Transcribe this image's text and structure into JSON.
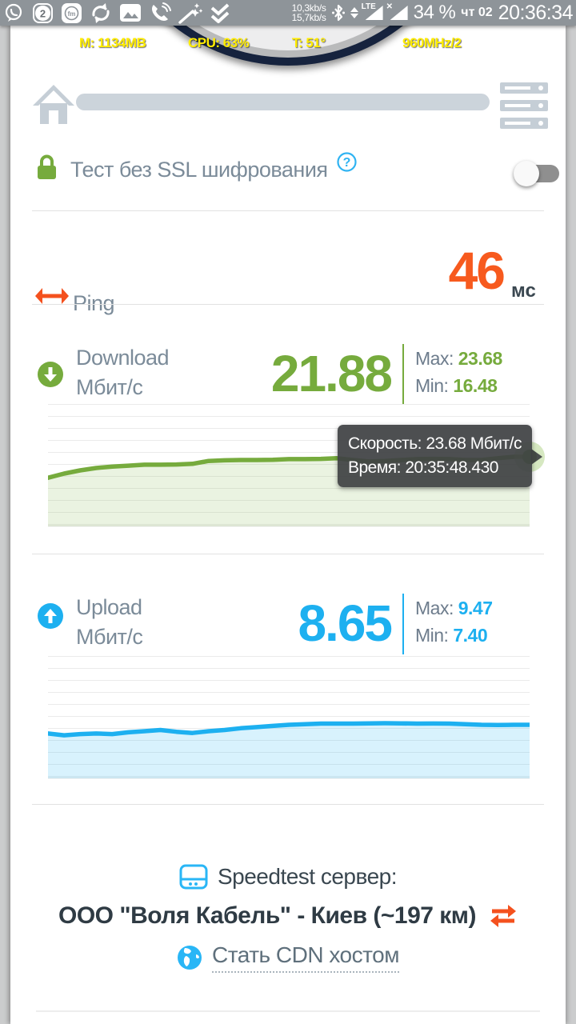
{
  "status_bar": {
    "net_speed_up": "10,3kb/s",
    "net_speed_down": "15,7kb/s",
    "lte_label": "LTE",
    "no_sim_mark": "✕",
    "battery": "34 %",
    "date": "чт 02",
    "time": "20:36:34",
    "app_icons": [
      "viber-icon",
      "notification-count-2-icon",
      "fm-radio-icon",
      "sync-icon",
      "gallery-icon",
      "call-icon",
      "magic-wand-icon",
      "double-check-icon"
    ],
    "badge_count": "2",
    "fm_label": "fm"
  },
  "device_stats": {
    "memory": "M: 1134MB",
    "cpu": "CPU: 63%",
    "temperature": "T: 51°",
    "frequency": "960MHz/2"
  },
  "toolbar": {
    "progress_percent": 0
  },
  "ssl": {
    "label": "Тест без SSL шифрования",
    "help_mark": "?",
    "toggle_on": false
  },
  "ping": {
    "label": "Ping",
    "value": "46",
    "unit": "мс"
  },
  "download": {
    "label": "Download",
    "unit": "Мбит/с",
    "value": "21.88",
    "max_label": "Max:",
    "max": "23.68",
    "min_label": "Min:",
    "min": "16.48"
  },
  "upload": {
    "label": "Upload",
    "unit": "Мбит/с",
    "value": "8.65",
    "max_label": "Max:",
    "max": "9.47",
    "min_label": "Min:",
    "min": "7.40"
  },
  "tooltip": {
    "speed": "Скорость: 23.68 Мбит/с",
    "time": "Время: 20:35:48.430"
  },
  "server": {
    "title": "Speedtest сервер:",
    "name": "ООО \"Воля Кабель\" - Киев (~197 км)"
  },
  "cdn": {
    "label": "Стать CDN хостом"
  },
  "colors": {
    "accent_green": "#76ab3d",
    "accent_blue": "#1db0f0",
    "accent_orange": "#f4511e",
    "label_gray": "#7b8b99",
    "dark_text": "#3a4750",
    "status_bar_bg": "#8e9499",
    "gauge_navy": "#16233e",
    "stats_yellow": "#ffec00"
  },
  "chart_data": [
    {
      "type": "area",
      "name": "download-speed",
      "title": "",
      "xlabel": "",
      "ylabel": "Мбит/с",
      "x_axis": "time (unlabeled ticks)",
      "ylim": [
        0,
        41.5
      ],
      "grid": true,
      "line_color": "#76ab3d",
      "fill_color": "rgba(124,179,66,0.16)",
      "end_marker": true,
      "values": [
        16.5,
        17.9,
        19.0,
        19.8,
        20.3,
        20.6,
        20.9,
        20.9,
        21.0,
        21.2,
        22.2,
        22.4,
        22.5,
        22.5,
        22.6,
        22.8,
        22.8,
        22.9,
        23.1,
        22.5,
        22.0,
        22.2,
        22.5,
        22.8,
        22.9,
        22.8,
        22.5,
        22.5,
        23.1,
        23.6,
        23.68
      ],
      "last_point": {
        "speed_mbit": 23.68,
        "time": "20:35:48.430"
      }
    },
    {
      "type": "area",
      "name": "upload-speed",
      "title": "",
      "xlabel": "",
      "ylabel": "Мбит/с",
      "x_axis": "time (unlabeled ticks)",
      "ylim": [
        0,
        21
      ],
      "grid": true,
      "line_color": "#1db0f0",
      "fill_color": "rgba(41,182,246,0.18)",
      "end_marker": false,
      "values": [
        7.7,
        7.4,
        7.6,
        7.7,
        7.6,
        7.9,
        8.1,
        8.3,
        8.0,
        7.8,
        8.1,
        8.3,
        8.6,
        8.8,
        9.0,
        9.2,
        9.3,
        9.4,
        9.4,
        9.4,
        9.45,
        9.47,
        9.45,
        9.4,
        9.42,
        9.4,
        9.3,
        9.2,
        9.15,
        9.2,
        9.2
      ]
    }
  ]
}
